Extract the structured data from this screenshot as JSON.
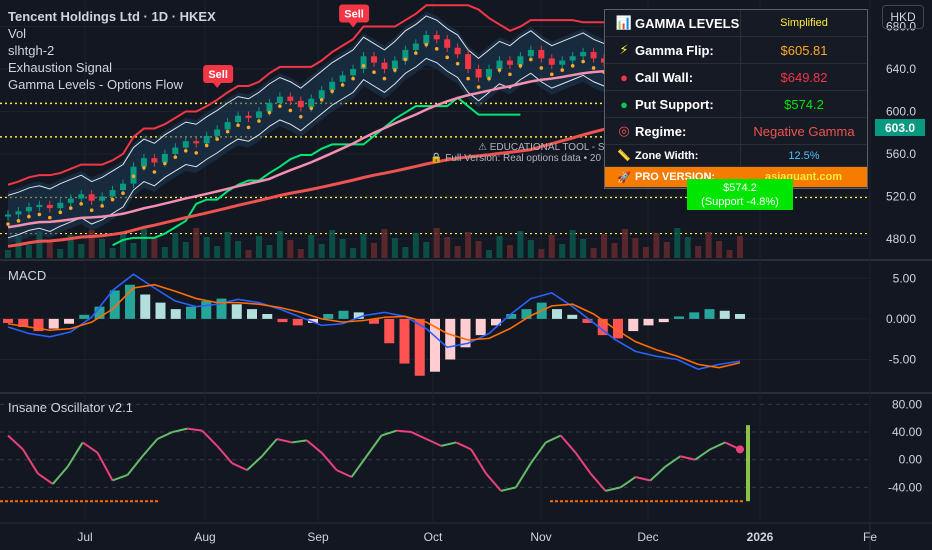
{
  "header": {
    "title": "Tencent Holdings Ltd · 1D · HKEX",
    "indicators": [
      "Vol",
      "slhtgh-2",
      "Exhaustion Signal",
      "Gamma Levels - Options Flow"
    ],
    "currency_button": "HKD"
  },
  "price_tag": "603.0",
  "gamma_table": {
    "title": "GAMMA LEVELS",
    "mode": "Simplified",
    "rows": [
      {
        "label": "Gamma Flip:",
        "value": "$605.81",
        "color": "#ffa726",
        "icon": "lightning-icon"
      },
      {
        "label": "Call Wall:",
        "value": "$649.82",
        "color": "#f23645",
        "icon": "red-circle-icon"
      },
      {
        "label": "Put Support:",
        "value": "$574.2",
        "color": "#00e600",
        "icon": "green-circle-icon"
      },
      {
        "label": "Regime:",
        "value": "Negative Gamma",
        "color": "#ef5350",
        "icon": "target-icon"
      },
      {
        "label": "Zone Width:",
        "value": "12.5%",
        "color": "#b2b5be",
        "icon": "ruler-icon"
      }
    ],
    "pro_label": "PRO VERSION:",
    "pro_value": "asiaquant.com"
  },
  "support_label": {
    "line1": "$574.2",
    "line2": "(Support -4.8%)"
  },
  "edu_note": "EDUCATIONAL TOOL - SI",
  "full_version_note": "Full Version: Real options data • 20",
  "pane_labels": {
    "macd": "MACD",
    "osc": "Insane Oscillator v2.1"
  },
  "sell_labels": [
    "Sell",
    "Sell",
    "Sell"
  ],
  "colors": {
    "background": "#131722",
    "grid": "#1e222d",
    "up": "#089981",
    "down": "#f23645",
    "macd_line": "#2962ff",
    "signal_line": "#ff6d00",
    "gamma_flip": "#ffeb3b"
  },
  "chart_data": [
    {
      "type": "line",
      "title": "Tencent Holdings Ltd · 1D · HKEX",
      "x_ticks": [
        "Jul",
        "Aug",
        "Sep",
        "Oct",
        "Nov",
        "Dec",
        "2026",
        "Fe"
      ],
      "y_ticks": [
        480.0,
        520.0,
        560.0,
        600.0,
        640.0,
        680.0
      ],
      "ylim": [
        462,
        705
      ],
      "close_series": [
        503,
        506,
        510,
        512,
        509,
        514,
        518,
        522,
        516,
        520,
        526,
        532,
        548,
        556,
        552,
        560,
        566,
        572,
        570,
        577,
        583,
        590,
        596,
        594,
        600,
        608,
        614,
        610,
        604,
        612,
        620,
        628,
        634,
        640,
        652,
        646,
        640,
        648,
        658,
        664,
        672,
        668,
        660,
        654,
        640,
        632,
        640,
        648,
        644,
        652,
        658,
        650,
        644,
        648,
        652,
        656,
        650,
        646,
        640,
        634,
        628,
        620,
        615,
        610,
        612,
        620,
        614,
        608,
        606,
        604,
        603
      ],
      "horizontal_levels": [
        {
          "name": "Gamma Flip",
          "value": 605.81
        },
        {
          "name": "Put Support",
          "value": 574.2
        },
        {
          "name": "Call Wall",
          "value": 649.82
        }
      ],
      "markers": [
        {
          "label": "Sell",
          "x_index": 20
        },
        {
          "label": "Sell",
          "x_index": 33
        },
        {
          "label": "Sell",
          "x_index": 40
        }
      ]
    },
    {
      "type": "bar",
      "title": "MACD",
      "y_ticks": [
        5.0,
        0.0,
        -5.0
      ],
      "ylim": [
        -9,
        7
      ],
      "histogram": [
        -0.5,
        -1.0,
        -1.5,
        -1.2,
        -0.6,
        0.5,
        1.5,
        3.5,
        4.2,
        3.0,
        2.0,
        1.2,
        1.5,
        2.2,
        2.5,
        1.8,
        1.2,
        0.6,
        -0.4,
        -0.8,
        -0.5,
        0.6,
        1.0,
        0.8,
        -0.6,
        -3.0,
        -5.5,
        -7.0,
        -6.5,
        -5.0,
        -3.5,
        -2.0,
        -0.8,
        0.6,
        1.2,
        2.0,
        1.2,
        0.5,
        -0.5,
        -2.0,
        -2.4,
        -1.5,
        -0.8,
        -0.4,
        0.3,
        0.8,
        1.2,
        1.0,
        0.6
      ],
      "series": [
        {
          "values": [
            -1.0,
            -1.8,
            -2.2,
            -1.6,
            0.2,
            3.5,
            5.5,
            3.8,
            2.2,
            1.5,
            1.8,
            2.4,
            2.0,
            1.2,
            0.2,
            -0.8,
            -0.6,
            0.4,
            0.8,
            0.3,
            -1.2,
            -3.5,
            -3.0,
            -1.8,
            0.5,
            2.5,
            3.2,
            1.5,
            -0.5,
            -2.5,
            -4.0,
            -4.6,
            -5.0,
            -6.2,
            -5.6,
            -5.2
          ]
        },
        {
          "values": [
            -0.6,
            -1.0,
            -1.4,
            -1.2,
            -0.4,
            1.2,
            3.8,
            4.2,
            3.4,
            2.5,
            2.0,
            2.0,
            1.8,
            1.4,
            0.8,
            0.0,
            -0.4,
            -0.2,
            0.2,
            0.3,
            -0.4,
            -1.8,
            -2.6,
            -2.4,
            -1.2,
            0.4,
            1.6,
            1.8,
            0.6,
            -1.2,
            -2.8,
            -3.8,
            -4.6,
            -5.6,
            -6.0,
            -5.4
          ]
        }
      ]
    },
    {
      "type": "line",
      "title": "Insane Oscillator v2.1",
      "y_ticks": [
        80.0,
        40.0,
        0.0,
        -40.0
      ],
      "ylim": [
        -90,
        95
      ],
      "series": [
        {
          "values": [
            35,
            15,
            -20,
            -35,
            -10,
            25,
            10,
            -30,
            -22,
            5,
            30,
            40,
            45,
            42,
            20,
            -5,
            -15,
            5,
            30,
            25,
            28,
            10,
            -15,
            -25,
            5,
            35,
            42,
            40,
            30,
            20,
            25,
            15,
            -20,
            -45,
            -40,
            -5,
            25,
            35,
            10,
            -20,
            -45,
            -40,
            -25,
            -30,
            -10,
            5,
            0,
            15,
            25,
            15
          ]
        }
      ]
    }
  ]
}
